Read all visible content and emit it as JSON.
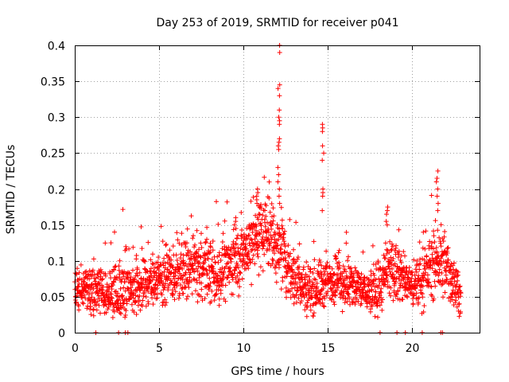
{
  "chart_data": {
    "type": "scatter",
    "title": "Day 253 of 2019, SRMTID for receiver p041",
    "xlabel": "GPS time / hours",
    "ylabel": "SRMTID / TECUs",
    "xlim": [
      0,
      24
    ],
    "ylim": [
      0,
      0.4
    ],
    "xticks": [
      0,
      5,
      10,
      15,
      20
    ],
    "xtick_labels": [
      "0",
      "5",
      "10",
      "15",
      "20"
    ],
    "yticks": [
      0,
      0.05,
      0.1,
      0.15,
      0.2,
      0.25,
      0.3,
      0.35,
      0.4
    ],
    "ytick_labels": [
      "0",
      "0.05",
      "0.1",
      "0.15",
      "0.2",
      "0.25",
      "0.3",
      "0.35",
      "0.4"
    ],
    "grid": true,
    "legend": "none",
    "series": [
      {
        "name": "SRMTID",
        "marker": "plus",
        "color": "#ff0000",
        "profile_note": "approximate envelope of the dense point cloud (hour, typical value, spread)",
        "profile_x": [
          0,
          0.5,
          1,
          1.5,
          2,
          2.5,
          3,
          3.5,
          4,
          4.5,
          5,
          5.5,
          6,
          6.5,
          7,
          7.5,
          8,
          8.5,
          9,
          9.5,
          10,
          10.5,
          11,
          11.5,
          12,
          12.5,
          13,
          13.5,
          14,
          14.5,
          15,
          15.5,
          16,
          16.5,
          17,
          17.5,
          18,
          18.5,
          19,
          19.5,
          20,
          20.5,
          21,
          21.5,
          22,
          22.5,
          22.9
        ],
        "profile_mean": [
          0.055,
          0.06,
          0.07,
          0.06,
          0.05,
          0.06,
          0.07,
          0.06,
          0.065,
          0.07,
          0.08,
          0.075,
          0.08,
          0.085,
          0.09,
          0.09,
          0.085,
          0.08,
          0.09,
          0.1,
          0.11,
          0.13,
          0.14,
          0.14,
          0.12,
          0.1,
          0.08,
          0.065,
          0.06,
          0.065,
          0.07,
          0.075,
          0.07,
          0.065,
          0.06,
          0.055,
          0.06,
          0.08,
          0.085,
          0.075,
          0.065,
          0.07,
          0.09,
          0.1,
          0.09,
          0.07,
          0.055
        ],
        "profile_spread": [
          0.02,
          0.02,
          0.025,
          0.025,
          0.02,
          0.03,
          0.03,
          0.025,
          0.025,
          0.025,
          0.025,
          0.025,
          0.025,
          0.03,
          0.03,
          0.03,
          0.03,
          0.03,
          0.03,
          0.03,
          0.03,
          0.035,
          0.035,
          0.035,
          0.035,
          0.03,
          0.03,
          0.025,
          0.025,
          0.025,
          0.025,
          0.025,
          0.025,
          0.025,
          0.02,
          0.02,
          0.025,
          0.03,
          0.03,
          0.025,
          0.02,
          0.025,
          0.03,
          0.035,
          0.03,
          0.025,
          0.02
        ],
        "spikes": [
          {
            "x": 12.1,
            "y": [
              0.39,
              0.4,
              0.345,
              0.34,
              0.33,
              0.31,
              0.3,
              0.295,
              0.29,
              0.27,
              0.265,
              0.26,
              0.255,
              0.23,
              0.22,
              0.21,
              0.2,
              0.19,
              0.18
            ]
          },
          {
            "x": 14.7,
            "y": [
              0.29,
              0.285,
              0.28,
              0.26,
              0.25,
              0.24,
              0.2,
              0.195,
              0.19,
              0.17
            ]
          },
          {
            "x": 21.5,
            "y": [
              0.225,
              0.215,
              0.21,
              0.2,
              0.19,
              0.18,
              0.17
            ]
          },
          {
            "x": 10.8,
            "y": [
              0.2,
              0.195,
              0.19,
              0.185,
              0.18
            ]
          },
          {
            "x": 18.5,
            "y": [
              0.175,
              0.17,
              0.165,
              0.155,
              0.15
            ]
          },
          {
            "x": 9.5,
            "y": [
              0.16,
              0.155,
              0.15,
              0.145
            ]
          }
        ],
        "zero_points_x": [
          1.25,
          2.6,
          3.0,
          3.15,
          18.1,
          19.1,
          19.6,
          20.6,
          21.7,
          21.8
        ]
      }
    ]
  }
}
